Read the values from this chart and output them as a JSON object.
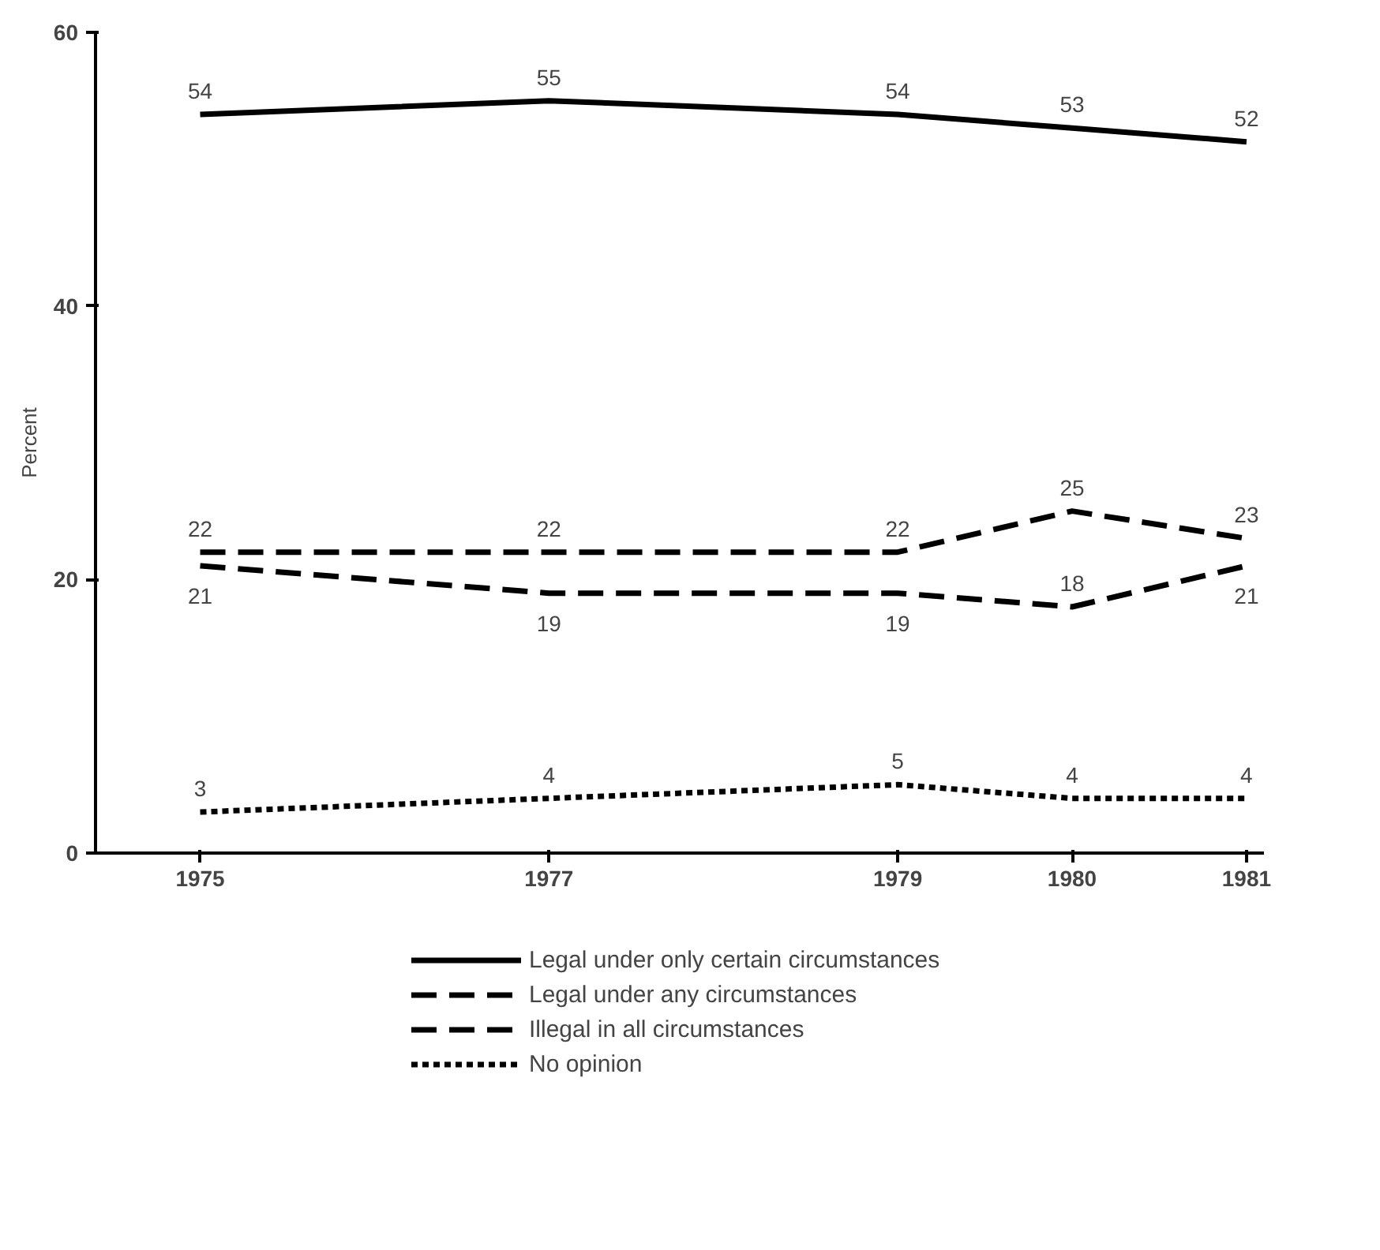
{
  "chart_data": {
    "type": "line",
    "ylabel": "Percent",
    "x": [
      1975,
      1977,
      1979,
      1980,
      1981
    ],
    "xlim": [
      1974.4,
      1981.1
    ],
    "xticks": [
      1975,
      1977,
      1979,
      1980,
      1981
    ],
    "ylim": [
      0,
      60
    ],
    "yticks": [
      0,
      20,
      40,
      60
    ],
    "grid": false,
    "legend": "bottom",
    "data_labels": true,
    "marker": "none",
    "series": [
      {
        "name": "Legal under only certain circumstances",
        "color": "#000000",
        "line_style": "solid",
        "values": [
          54,
          55,
          54,
          53,
          52
        ]
      },
      {
        "name": "Legal under any circumstances",
        "color": "#000000",
        "line_style": "dashed",
        "values": [
          22,
          22,
          22,
          25,
          23
        ]
      },
      {
        "name": "Illegal in all circumstances",
        "color": "#000000",
        "line_style": "dashed",
        "values": [
          21,
          19,
          19,
          18,
          21
        ]
      },
      {
        "name": "No opinion",
        "color": "#000000",
        "line_style": "dotted",
        "values": [
          3,
          4,
          5,
          4,
          4
        ]
      }
    ]
  }
}
